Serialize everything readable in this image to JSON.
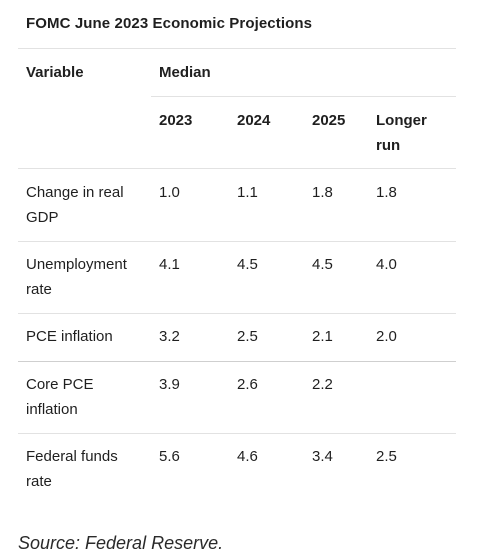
{
  "title": "FOMC June 2023 Economic Projections",
  "header": {
    "variable": "Variable",
    "median": "Median",
    "years": [
      "2023",
      "2024",
      "2025",
      "Longer run"
    ]
  },
  "rows": [
    {
      "variable": "Change in real GDP",
      "values": [
        "1.0",
        "1.1",
        "1.8",
        "1.8"
      ]
    },
    {
      "variable": "Unemployment rate",
      "values": [
        "4.1",
        "4.5",
        "4.5",
        "4.0"
      ]
    },
    {
      "variable": "PCE inflation",
      "values": [
        "3.2",
        "2.5",
        "2.1",
        "2.0"
      ]
    },
    {
      "variable": "Core PCE inflation",
      "values": [
        "3.9",
        "2.6",
        "2.2",
        ""
      ]
    },
    {
      "variable": "Federal funds rate",
      "values": [
        "5.6",
        "4.6",
        "3.4",
        "2.5"
      ]
    }
  ],
  "source": "Source: Federal Reserve."
}
